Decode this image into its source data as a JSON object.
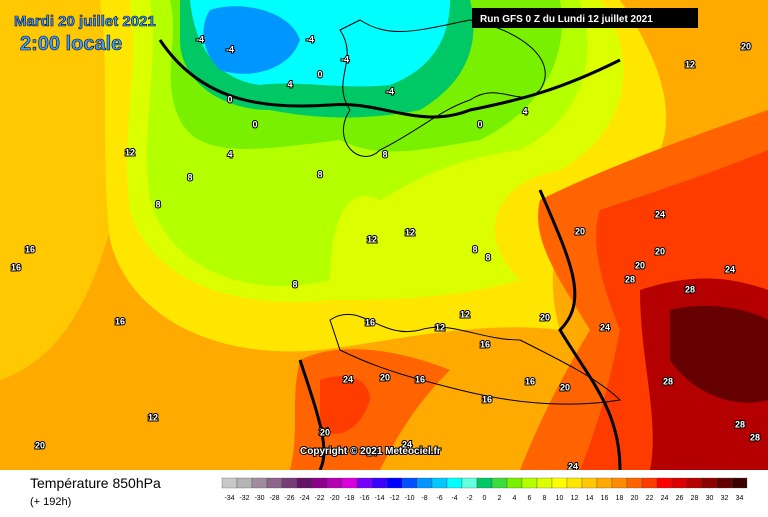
{
  "header": {
    "date": "Mardi 20 juillet 2021",
    "time": "2:00 locale",
    "run": "Run GFS 0 Z du Lundi 12 juillet 2021"
  },
  "copyright": "Copyright © 2021 Meteociel.fr",
  "footer": {
    "title": "Température 850hPa",
    "lead": "(+ 192h)"
  },
  "scale": {
    "ticks": [
      -34,
      -32,
      -30,
      -28,
      -26,
      -24,
      -22,
      -20,
      -18,
      -16,
      -14,
      -12,
      -10,
      -8,
      -6,
      -4,
      -2,
      0,
      2,
      4,
      6,
      8,
      10,
      12,
      14,
      16,
      18,
      20,
      22,
      24,
      26,
      28,
      30,
      32,
      34
    ],
    "colors": [
      "#c8c8c8",
      "#b4b4b4",
      "#a08ca0",
      "#8c648c",
      "#783c78",
      "#641464",
      "#8c008c",
      "#b400b4",
      "#dc00dc",
      "#7800ff",
      "#3c00ff",
      "#0000ff",
      "#0050ff",
      "#0096ff",
      "#00c8ff",
      "#00ffff",
      "#64ffdc",
      "#00c864",
      "#3cdc3c",
      "#78f000",
      "#b4ff00",
      "#dcff00",
      "#ffff00",
      "#ffe600",
      "#ffc800",
      "#ffaa00",
      "#ff8c00",
      "#ff6400",
      "#ff3c00",
      "#ff0000",
      "#dc0000",
      "#b40000",
      "#8c0000",
      "#640000",
      "#3c0000"
    ]
  },
  "map_labels": [
    "-4",
    "-4",
    "-4",
    "-4",
    "0",
    "0",
    "-4",
    "4",
    "0",
    "4",
    "0",
    "8",
    "8",
    "12",
    "8",
    "8",
    "8",
    "8",
    "12",
    "12",
    "8",
    "12",
    "16",
    "16",
    "16",
    "16",
    "16",
    "16",
    "20",
    "24",
    "24",
    "20",
    "24",
    "28",
    "28",
    "24",
    "20",
    "24",
    "20",
    "28",
    "24",
    "20",
    "20",
    "12",
    "12",
    "16",
    "20",
    "16",
    "24",
    "28",
    "28",
    "24",
    "12",
    "20",
    "4",
    "20"
  ]
}
